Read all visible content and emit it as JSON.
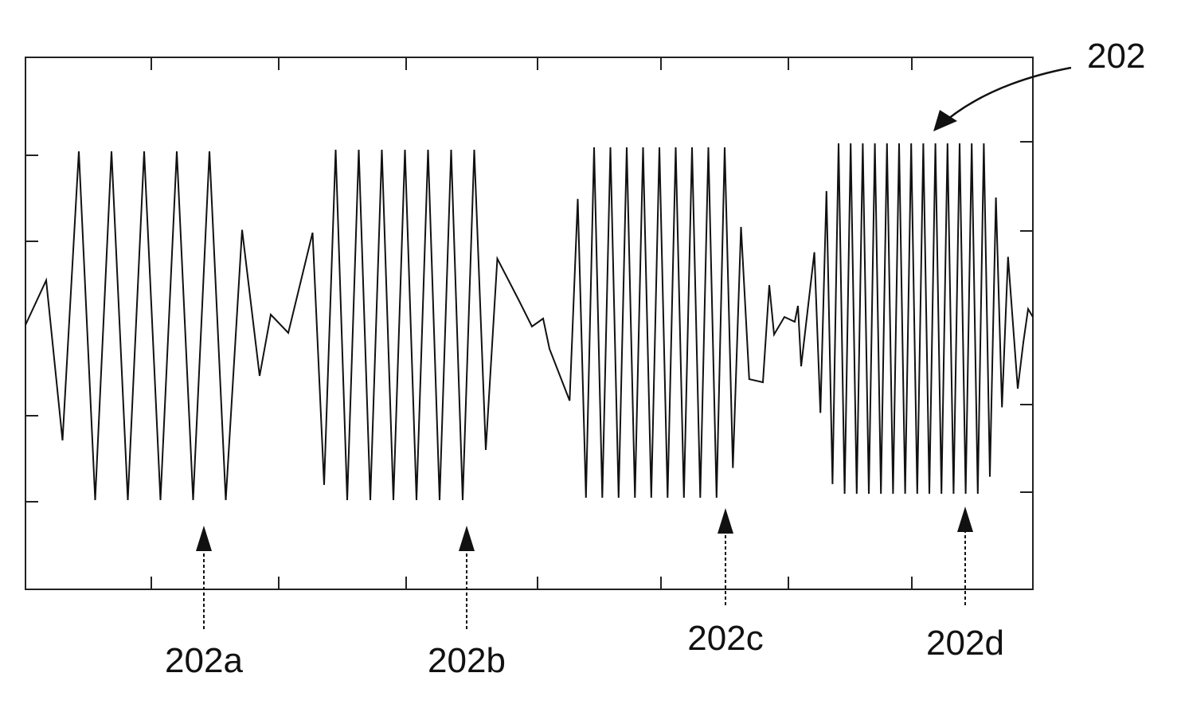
{
  "labels": {
    "main": "202",
    "parts": [
      "202a",
      "202b",
      "202c",
      "202d"
    ]
  }
}
